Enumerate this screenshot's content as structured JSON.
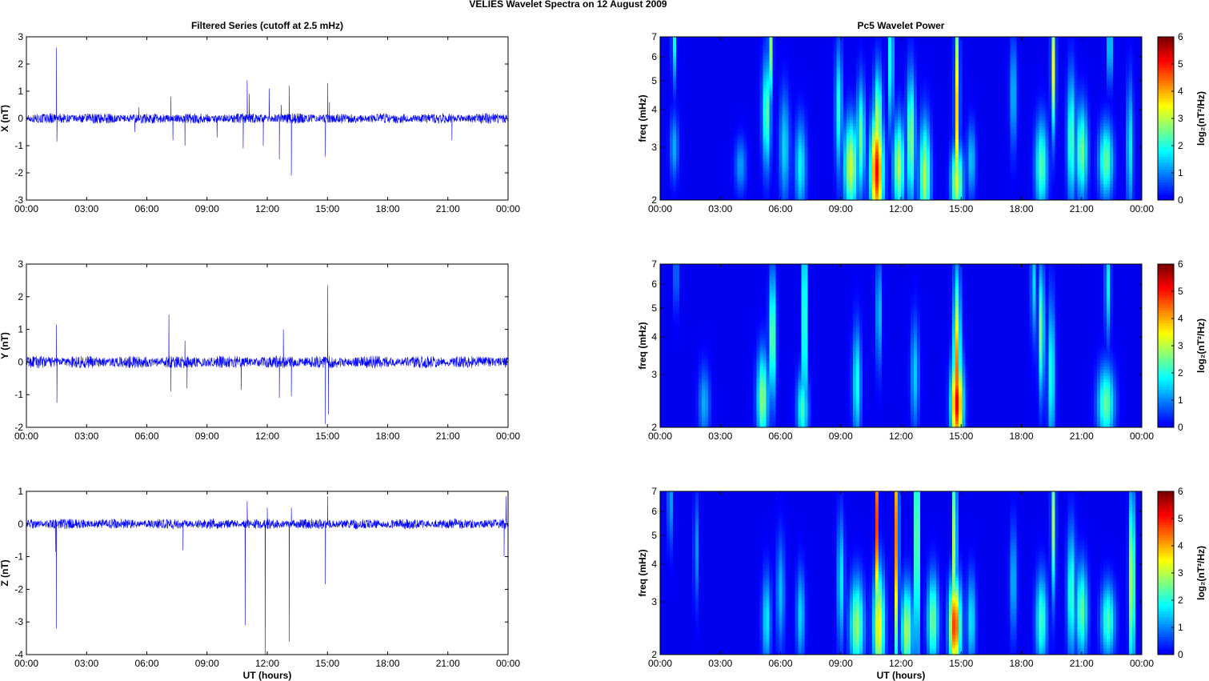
{
  "figure": {
    "title": "VELIES Wavelet Spectra on 12 August    2009"
  },
  "chart_data": [
    {
      "id": "x-series",
      "type": "line",
      "title": "Filtered Series (cutoff at 2.5 mHz)",
      "xlabel": "",
      "ylabel": "X (nT)",
      "xlim": [
        0,
        24
      ],
      "ylim": [
        -3,
        3
      ],
      "xticks": [
        "00:00",
        "03:00",
        "06:00",
        "09:00",
        "12:00",
        "15:00",
        "18:00",
        "21:00",
        "00:00"
      ],
      "yticks": [
        "-3",
        "-2",
        "-1",
        "0",
        "1",
        "2",
        "3"
      ],
      "color": "#0000ff",
      "series": [
        {
          "x": [
            0,
            1.2,
            1.5,
            1.52,
            1.6,
            5.4,
            5.6,
            7.2,
            7.3,
            7.9,
            9.5,
            10.8,
            11.0,
            11.1,
            11.8,
            12.1,
            12.6,
            12.7,
            13.1,
            13.2,
            14.9,
            15.0,
            15.1,
            21.2,
            24
          ],
          "y": [
            0,
            0.2,
            2.6,
            -0.85,
            0.1,
            -0.5,
            0.4,
            0.8,
            -0.8,
            -1.0,
            -0.7,
            -1.1,
            1.4,
            0.9,
            -1.0,
            1.1,
            -1.5,
            0.5,
            1.2,
            -2.1,
            -1.4,
            1.3,
            0.6,
            -0.8,
            0
          ]
        }
      ],
      "noise_amplitude": 0.12
    },
    {
      "id": "y-series",
      "type": "line",
      "title": "",
      "xlabel": "",
      "ylabel": "Y (nT)",
      "xlim": [
        0,
        24
      ],
      "ylim": [
        -2,
        3
      ],
      "xticks": [
        "00:00",
        "03:00",
        "06:00",
        "09:00",
        "12:00",
        "15:00",
        "18:00",
        "21:00",
        "00:00"
      ],
      "yticks": [
        "-2",
        "-1",
        "0",
        "1",
        "2",
        "3"
      ],
      "color": "#0000ff",
      "series": [
        {
          "x": [
            0,
            1.5,
            1.52,
            7.1,
            7.2,
            7.9,
            8.0,
            10.7,
            12.6,
            12.8,
            13.2,
            14.9,
            15.0,
            15.05,
            24
          ],
          "y": [
            0,
            1.15,
            -1.25,
            1.45,
            -0.9,
            0.65,
            -0.8,
            -0.85,
            -1.1,
            1.0,
            -1.05,
            -1.9,
            2.35,
            -1.6,
            0
          ]
        }
      ],
      "noise_amplitude": 0.12
    },
    {
      "id": "z-series",
      "type": "line",
      "title": "",
      "xlabel": "UT (hours)",
      "ylabel": "Z (nT)",
      "xlim": [
        0,
        24
      ],
      "ylim": [
        -4,
        1
      ],
      "xticks": [
        "00:00",
        "03:00",
        "06:00",
        "09:00",
        "12:00",
        "15:00",
        "18:00",
        "21:00",
        "00:00"
      ],
      "yticks": [
        "-4",
        "-3",
        "-2",
        "-1",
        "0",
        "1"
      ],
      "color": "#0000ff",
      "series": [
        {
          "x": [
            0,
            1.45,
            1.5,
            7.8,
            10.9,
            11.0,
            11.9,
            12.0,
            13.1,
            13.2,
            14.9,
            15.0,
            23.8,
            23.9,
            24
          ],
          "y": [
            0,
            -0.85,
            -3.2,
            -0.8,
            -3.1,
            0.7,
            -4.0,
            0.5,
            -3.6,
            0.5,
            -1.85,
            0.85,
            -1.0,
            0.85,
            0
          ]
        }
      ],
      "noise_amplitude": 0.1
    },
    {
      "id": "x-power",
      "type": "heatmap",
      "title": "Pc5 Wavelet Power",
      "xlabel": "",
      "ylabel": "freq (mHz)",
      "xlim": [
        0,
        24
      ],
      "ylim": [
        2,
        7
      ],
      "yscale": "log",
      "xticks": [
        "00:00",
        "03:00",
        "06:00",
        "09:00",
        "12:00",
        "15:00",
        "18:00",
        "21:00",
        "00:00"
      ],
      "yticks": [
        "2",
        "3",
        "4",
        "5",
        "6",
        "7"
      ],
      "colorbar": {
        "label": "log₂(nT²/Hz)",
        "range": [
          0,
          6
        ],
        "ticks": [
          "0",
          "1",
          "2",
          "3",
          "4",
          "5",
          "6"
        ]
      },
      "blobs": [
        {
          "t": 0.7,
          "f": 7,
          "v": 2,
          "w": 0.08,
          "hf": 0.25
        },
        {
          "t": 0.7,
          "f": 3,
          "v": 1.3,
          "w": 0.15,
          "hf": 0.18
        },
        {
          "t": 4.0,
          "f": 2.6,
          "v": 1.2,
          "w": 0.2,
          "hf": 0.15
        },
        {
          "t": 5.3,
          "f": 3.9,
          "v": 2.5,
          "w": 0.15,
          "hf": 0.3
        },
        {
          "t": 5.5,
          "f": 6.5,
          "v": 2.8,
          "w": 0.08,
          "hf": 0.3
        },
        {
          "t": 6.2,
          "f": 3,
          "v": 1.6,
          "w": 0.18,
          "hf": 0.3
        },
        {
          "t": 7.0,
          "f": 2.6,
          "v": 1.8,
          "w": 0.2,
          "hf": 0.25
        },
        {
          "t": 8.9,
          "f": 4,
          "v": 2.0,
          "w": 0.12,
          "hf": 0.35
        },
        {
          "t": 9.5,
          "f": 2.6,
          "v": 3.2,
          "w": 0.25,
          "hf": 0.25
        },
        {
          "t": 10.0,
          "f": 3.2,
          "v": 2.5,
          "w": 0.15,
          "hf": 0.3
        },
        {
          "t": 10.8,
          "f": 2.5,
          "v": 5.2,
          "w": 0.22,
          "hf": 0.3
        },
        {
          "t": 10.85,
          "f": 3.5,
          "v": 3.2,
          "w": 0.15,
          "hf": 0.3
        },
        {
          "t": 11.5,
          "f": 6,
          "v": 2.6,
          "w": 0.08,
          "hf": 0.4
        },
        {
          "t": 11.9,
          "f": 2.6,
          "v": 3.0,
          "w": 0.2,
          "hf": 0.25
        },
        {
          "t": 12.5,
          "f": 3.2,
          "v": 2.8,
          "w": 0.15,
          "hf": 0.35
        },
        {
          "t": 13.2,
          "f": 2.4,
          "v": 3.0,
          "w": 0.2,
          "hf": 0.3
        },
        {
          "t": 14.8,
          "f": 4,
          "v": 3.8,
          "w": 0.08,
          "hf": 0.6
        },
        {
          "t": 14.8,
          "f": 2.3,
          "v": 3.2,
          "w": 0.2,
          "hf": 0.2
        },
        {
          "t": 15.5,
          "f": 2.7,
          "v": 1.5,
          "w": 0.15,
          "hf": 0.2
        },
        {
          "t": 17.6,
          "f": 4.5,
          "v": 1.5,
          "w": 0.12,
          "hf": 0.3
        },
        {
          "t": 19.0,
          "f": 2.6,
          "v": 2.4,
          "w": 0.22,
          "hf": 0.25
        },
        {
          "t": 19.6,
          "f": 5.5,
          "v": 3.4,
          "w": 0.08,
          "hf": 0.35
        },
        {
          "t": 20.5,
          "f": 3.2,
          "v": 2.4,
          "w": 0.15,
          "hf": 0.35
        },
        {
          "t": 21.0,
          "f": 2.9,
          "v": 2.6,
          "w": 0.2,
          "hf": 0.25
        },
        {
          "t": 22.2,
          "f": 2.7,
          "v": 2.5,
          "w": 0.25,
          "hf": 0.2
        },
        {
          "t": 22.4,
          "f": 6.5,
          "v": 2.2,
          "w": 0.08,
          "hf": 0.2
        },
        {
          "t": 23.4,
          "f": 3,
          "v": 1.8,
          "w": 0.12,
          "hf": 0.35
        }
      ]
    },
    {
      "id": "y-power",
      "type": "heatmap",
      "title": "",
      "xlabel": "",
      "ylabel": "freq (mHz)",
      "xlim": [
        0,
        24
      ],
      "ylim": [
        2,
        7
      ],
      "yscale": "log",
      "xticks": [
        "00:00",
        "03:00",
        "06:00",
        "09:00",
        "12:00",
        "15:00",
        "18:00",
        "21:00",
        "00:00"
      ],
      "yticks": [
        "2",
        "3",
        "4",
        "5",
        "6",
        "7"
      ],
      "colorbar": {
        "label": "log₂(nT²/Hz)",
        "range": [
          0,
          6
        ],
        "ticks": [
          "0",
          "1",
          "2",
          "3",
          "4",
          "5",
          "6"
        ]
      },
      "blobs": [
        {
          "t": 0.8,
          "f": 6.5,
          "v": 1.2,
          "w": 0.08,
          "hf": 0.2
        },
        {
          "t": 2.2,
          "f": 2.4,
          "v": 1.3,
          "w": 0.2,
          "hf": 0.2
        },
        {
          "t": 5.1,
          "f": 2.5,
          "v": 2.8,
          "w": 0.2,
          "hf": 0.25
        },
        {
          "t": 5.6,
          "f": 4,
          "v": 2.8,
          "w": 0.12,
          "hf": 0.35
        },
        {
          "t": 7.2,
          "f": 4.5,
          "v": 3.2,
          "w": 0.08,
          "hf": 0.6
        },
        {
          "t": 7.1,
          "f": 2.3,
          "v": 2.2,
          "w": 0.2,
          "hf": 0.2
        },
        {
          "t": 9.8,
          "f": 2.8,
          "v": 2.0,
          "w": 0.15,
          "hf": 0.3
        },
        {
          "t": 10.9,
          "f": 4.8,
          "v": 1.6,
          "w": 0.1,
          "hf": 0.3
        },
        {
          "t": 12.7,
          "f": 3,
          "v": 1.5,
          "w": 0.15,
          "hf": 0.3
        },
        {
          "t": 14.8,
          "f": 3.0,
          "v": 4.5,
          "w": 0.12,
          "hf": 0.5
        },
        {
          "t": 14.8,
          "f": 2.4,
          "v": 5.3,
          "w": 0.2,
          "hf": 0.25
        },
        {
          "t": 18.6,
          "f": 6,
          "v": 1.8,
          "w": 0.08,
          "hf": 0.3
        },
        {
          "t": 19.0,
          "f": 4.2,
          "v": 2.8,
          "w": 0.1,
          "hf": 0.35
        },
        {
          "t": 19.5,
          "f": 3,
          "v": 2.2,
          "w": 0.12,
          "hf": 0.4
        },
        {
          "t": 22.2,
          "f": 2.4,
          "v": 2.5,
          "w": 0.3,
          "hf": 0.2
        },
        {
          "t": 22.3,
          "f": 6,
          "v": 1.8,
          "w": 0.1,
          "hf": 0.3
        }
      ]
    },
    {
      "id": "z-power",
      "type": "heatmap",
      "title": "",
      "xlabel": "UT (hours)",
      "ylabel": "freq (mHz)",
      "xlim": [
        0,
        24
      ],
      "ylim": [
        2,
        7
      ],
      "yscale": "log",
      "xticks": [
        "00:00",
        "03:00",
        "06:00",
        "09:00",
        "12:00",
        "15:00",
        "18:00",
        "21:00",
        "00:00"
      ],
      "yticks": [
        "2",
        "3",
        "4",
        "5",
        "6",
        "7"
      ],
      "colorbar": {
        "label": "log₂(nT²/Hz)",
        "range": [
          0,
          6
        ],
        "ticks": [
          "0",
          "1",
          "2",
          "3",
          "4",
          "5",
          "6"
        ]
      },
      "blobs": [
        {
          "t": 0.5,
          "f": 6.5,
          "v": 1.5,
          "w": 0.08,
          "hf": 0.25
        },
        {
          "t": 1.8,
          "f": 4.5,
          "v": 1.2,
          "w": 0.08,
          "hf": 0.3
        },
        {
          "t": 5.3,
          "f": 2.6,
          "v": 1.8,
          "w": 0.15,
          "hf": 0.25
        },
        {
          "t": 6.0,
          "f": 3.2,
          "v": 1.4,
          "w": 0.15,
          "hf": 0.3
        },
        {
          "t": 7.0,
          "f": 2.7,
          "v": 1.6,
          "w": 0.15,
          "hf": 0.25
        },
        {
          "t": 9.0,
          "f": 3.5,
          "v": 1.8,
          "w": 0.12,
          "hf": 0.35
        },
        {
          "t": 9.8,
          "f": 2.5,
          "v": 2.8,
          "w": 0.25,
          "hf": 0.25
        },
        {
          "t": 10.8,
          "f": 5.5,
          "v": 4.8,
          "w": 0.06,
          "hf": 0.5
        },
        {
          "t": 10.9,
          "f": 2.5,
          "v": 3.6,
          "w": 0.2,
          "hf": 0.3
        },
        {
          "t": 11.8,
          "f": 5,
          "v": 5.5,
          "w": 0.06,
          "hf": 0.7
        },
        {
          "t": 12.3,
          "f": 2.4,
          "v": 3.0,
          "w": 0.2,
          "hf": 0.25
        },
        {
          "t": 12.8,
          "f": 5,
          "v": 5.5,
          "w": 0.06,
          "hf": 0.7
        },
        {
          "t": 13.6,
          "f": 2.6,
          "v": 2.6,
          "w": 0.2,
          "hf": 0.25
        },
        {
          "t": 14.7,
          "f": 4.5,
          "v": 4.8,
          "w": 0.06,
          "hf": 0.6
        },
        {
          "t": 14.7,
          "f": 2.5,
          "v": 5.0,
          "w": 0.2,
          "hf": 0.25
        },
        {
          "t": 15.5,
          "f": 2.6,
          "v": 1.8,
          "w": 0.15,
          "hf": 0.25
        },
        {
          "t": 17.6,
          "f": 3.5,
          "v": 1.5,
          "w": 0.12,
          "hf": 0.3
        },
        {
          "t": 19.0,
          "f": 2.6,
          "v": 2.3,
          "w": 0.2,
          "hf": 0.25
        },
        {
          "t": 19.6,
          "f": 5.5,
          "v": 2.8,
          "w": 0.08,
          "hf": 0.4
        },
        {
          "t": 20.5,
          "f": 3.2,
          "v": 2.3,
          "w": 0.15,
          "hf": 0.35
        },
        {
          "t": 21.0,
          "f": 2.8,
          "v": 2.5,
          "w": 0.2,
          "hf": 0.25
        },
        {
          "t": 22.3,
          "f": 2.6,
          "v": 2.3,
          "w": 0.25,
          "hf": 0.2
        },
        {
          "t": 23.5,
          "f": 3.5,
          "v": 3.4,
          "w": 0.1,
          "hf": 0.5
        }
      ]
    }
  ]
}
